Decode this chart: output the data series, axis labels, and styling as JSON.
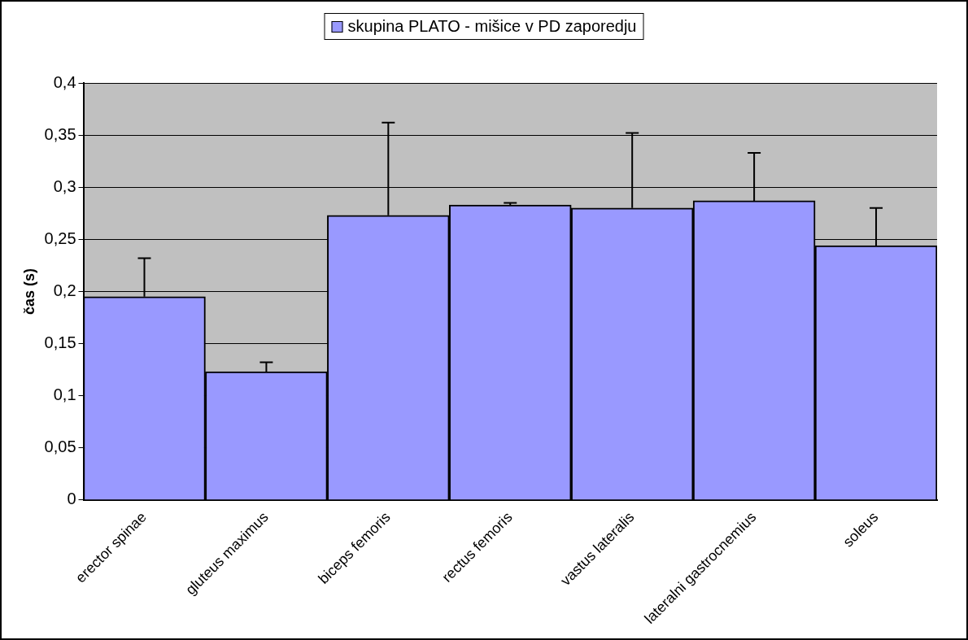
{
  "chart_data": {
    "type": "bar",
    "ylabel": "čas (s)",
    "legend": "top",
    "categories": [
      "erector spinae",
      "gluteus maximus",
      "biceps femoris",
      "rectus femoris",
      "vastus lateralis",
      "lateralni gastrocnemius",
      "soleus"
    ],
    "series": [
      {
        "name": "skupina PLATO - mišice v PD zaporedju",
        "color": "#9999ff",
        "values": [
          0.195,
          0.123,
          0.273,
          0.283,
          0.28,
          0.287,
          0.244
        ],
        "errors": [
          [
            0.195,
            0.232
          ],
          [
            0.123,
            0.132
          ],
          [
            0.273,
            0.362
          ],
          [
            0.283,
            0.285
          ],
          [
            0.28,
            0.352
          ],
          [
            0.287,
            0.333
          ],
          [
            0.244,
            0.28
          ]
        ]
      }
    ],
    "ylim": [
      0,
      0.4
    ],
    "yticks": [
      {
        "value": 0,
        "label": "0"
      },
      {
        "value": 0.05,
        "label": "0,05"
      },
      {
        "value": 0.1,
        "label": "0,1"
      },
      {
        "value": 0.15,
        "label": "0,15"
      },
      {
        "value": 0.2,
        "label": "0,2"
      },
      {
        "value": 0.25,
        "label": "0,25"
      },
      {
        "value": 0.3,
        "label": "0,3"
      },
      {
        "value": 0.35,
        "label": "0,35"
      },
      {
        "value": 0.4,
        "label": "0,4"
      }
    ],
    "grid": "y"
  }
}
